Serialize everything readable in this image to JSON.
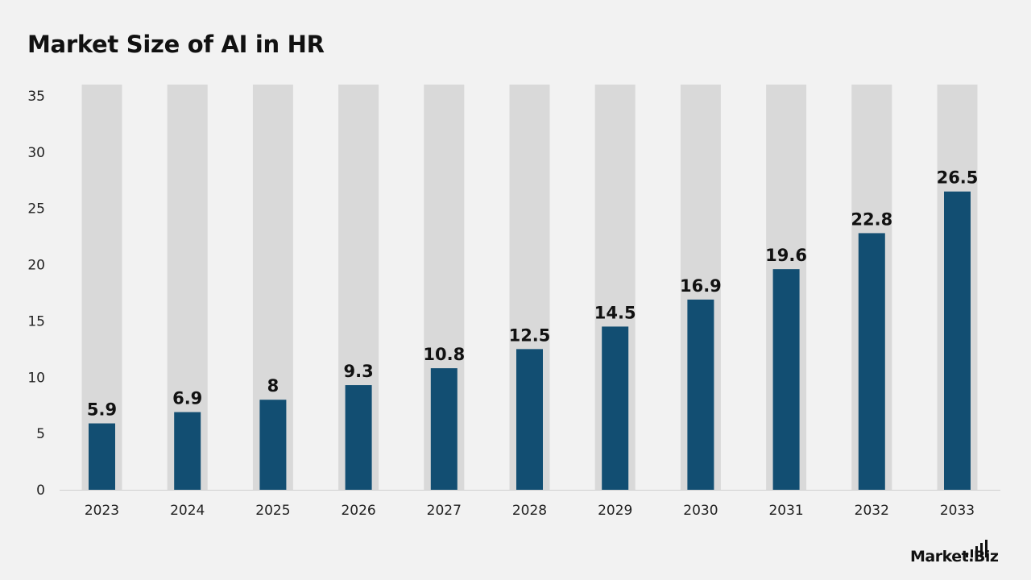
{
  "chart_data": {
    "type": "bar",
    "title": "Market Size of AI in HR",
    "categories": [
      "2023",
      "2024",
      "2025",
      "2026",
      "2027",
      "2028",
      "2029",
      "2030",
      "2031",
      "2032",
      "2033"
    ],
    "values": [
      5.9,
      6.9,
      8,
      9.3,
      10.8,
      12.5,
      14.5,
      16.9,
      19.6,
      22.8,
      26.5
    ],
    "value_labels": [
      "5.9",
      "6.9",
      "8",
      "9.3",
      "10.8",
      "12.5",
      "14.5",
      "16.9",
      "19.6",
      "22.8",
      "26.5"
    ],
    "xlabel": "",
    "ylabel": "",
    "ylim": [
      0,
      36
    ],
    "yticks": [
      0,
      5,
      10,
      15,
      20,
      25,
      30,
      35
    ],
    "grid": false,
    "legend": "none",
    "colors": {
      "bar": "#124e72",
      "background_bar": "#d9d9d9",
      "axis": "#d0d0d0",
      "text": "#111111"
    }
  },
  "brand": {
    "logo_text": "Market.Biz",
    "icon": "bar-signal-icon"
  }
}
